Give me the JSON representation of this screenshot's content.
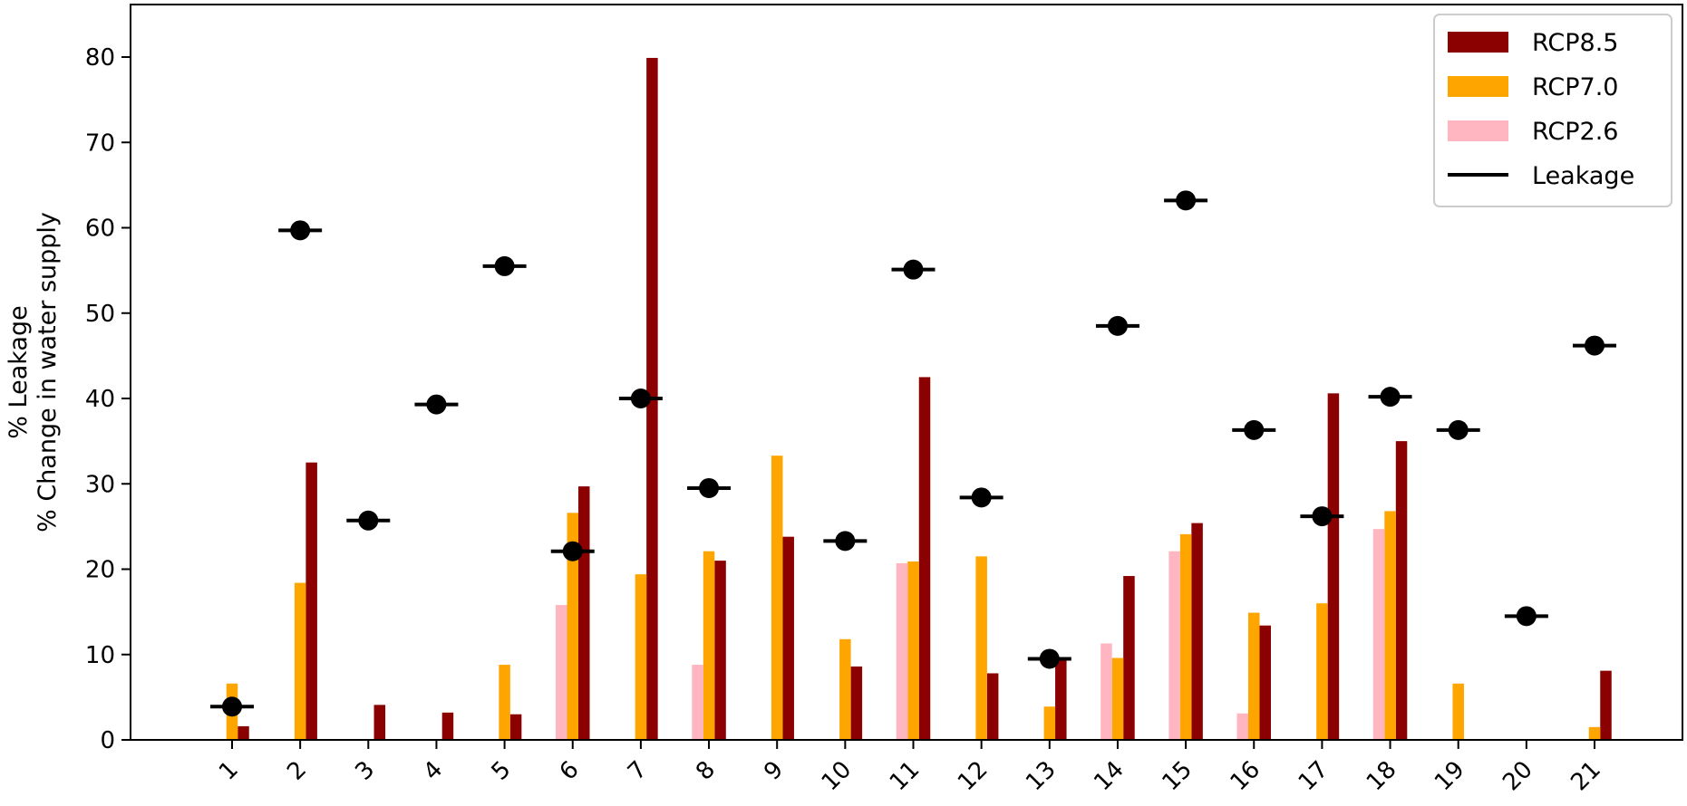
{
  "chart_data": {
    "type": "bar",
    "title": "",
    "xlabel": "",
    "ylabel_lines": [
      "% Leakage",
      "% Change in water supply"
    ],
    "ylim": [
      0,
      85
    ],
    "yticks": [
      0,
      10,
      20,
      30,
      40,
      50,
      60,
      70,
      80
    ],
    "categories": [
      "1",
      "2",
      "3",
      "4",
      "5",
      "6",
      "7",
      "8",
      "9",
      "10",
      "11",
      "12",
      "13",
      "14",
      "15",
      "16",
      "17",
      "18",
      "19",
      "20",
      "21"
    ],
    "series": [
      {
        "name": "RCP8.5",
        "color": "#8b0000",
        "values": [
          1.6,
          32.5,
          4.1,
          3.2,
          3.0,
          29.7,
          79.9,
          21.0,
          23.8,
          8.6,
          42.5,
          7.8,
          9.6,
          19.2,
          25.4,
          13.4,
          40.6,
          35.0,
          0,
          0,
          8.1
        ]
      },
      {
        "name": "RCP7.0",
        "color": "#ffa500",
        "values": [
          6.6,
          18.4,
          0,
          0,
          8.8,
          26.6,
          19.4,
          22.1,
          33.3,
          11.8,
          20.9,
          21.5,
          3.9,
          9.6,
          24.1,
          14.9,
          16.0,
          26.8,
          6.6,
          0,
          1.5
        ]
      },
      {
        "name": "RCP2.6",
        "color": "#ffb6c1",
        "values": [
          0,
          0,
          0,
          0,
          0,
          15.8,
          0,
          8.8,
          0,
          0,
          20.7,
          0,
          0,
          11.3,
          22.1,
          3.1,
          0,
          24.7,
          0,
          0,
          0
        ]
      },
      {
        "name": "Leakage",
        "color": "#000000",
        "marker": "circle-with-hline",
        "values": [
          3.9,
          59.7,
          25.7,
          39.3,
          55.5,
          22.1,
          40.0,
          29.5,
          null,
          23.3,
          55.1,
          28.4,
          9.5,
          48.5,
          63.2,
          36.3,
          26.2,
          40.2,
          36.3,
          14.5,
          46.2
        ]
      }
    ],
    "legend_position": "top-right",
    "grid": false
  }
}
